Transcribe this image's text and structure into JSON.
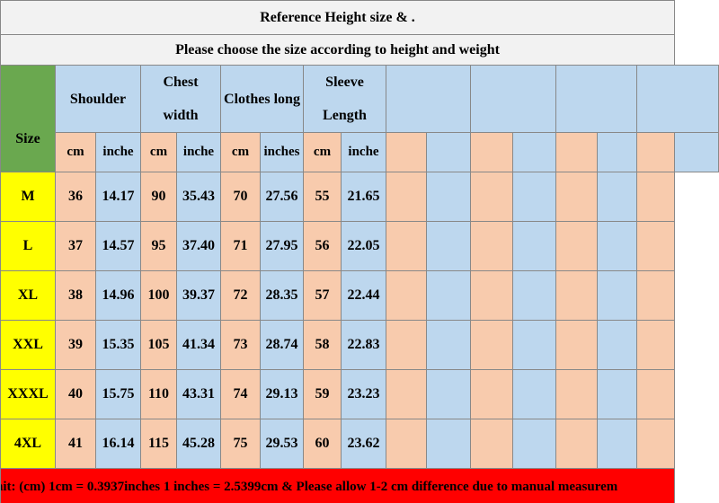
{
  "title": "Reference Height size   &  .",
  "subtitle": "Please choose the size according to height and weight",
  "headers": {
    "size": "Size",
    "shoulder": "Shoulder",
    "chest_line1": "Chest",
    "chest_line2": "width",
    "clothes_long": "Clothes long",
    "sleeve_line1": "Sleeve",
    "sleeve_line2": "Length"
  },
  "units": [
    "cm",
    "inche",
    "cm",
    "inche",
    "cm",
    "inches",
    "cm",
    "inche"
  ],
  "rows": [
    {
      "size": "M",
      "values": [
        "36",
        "14.17",
        "90",
        "35.43",
        "70",
        "27.56",
        "55",
        "21.65"
      ]
    },
    {
      "size": "L",
      "values": [
        "37",
        "14.57",
        "95",
        "37.40",
        "71",
        "27.95",
        "56",
        "22.05"
      ]
    },
    {
      "size": "XL",
      "values": [
        "38",
        "14.96",
        "100",
        "39.37",
        "72",
        "28.35",
        "57",
        "22.44"
      ]
    },
    {
      "size": "XXL",
      "values": [
        "39",
        "15.35",
        "105",
        "41.34",
        "73",
        "28.74",
        "58",
        "22.83"
      ]
    },
    {
      "size": "XXXL",
      "values": [
        "40",
        "15.75",
        "110",
        "43.31",
        "74",
        "29.13",
        "59",
        "23.23"
      ]
    },
    {
      "size": "4XL",
      "values": [
        "41",
        "16.14",
        "115",
        "45.28",
        "75",
        "29.53",
        "60",
        "23.62"
      ]
    }
  ],
  "footer": "nit: (cm)  1cm = 0.3937inches  1 inches = 2.5399cm  &     Please allow 1-2 cm difference due to manual measurem",
  "colors": {
    "size_header": "#6aa84f",
    "header_blue": "#bdd7ee",
    "peach": "#f8cbad",
    "size_yellow": "#ffff00",
    "footer_red": "#ff0000"
  }
}
